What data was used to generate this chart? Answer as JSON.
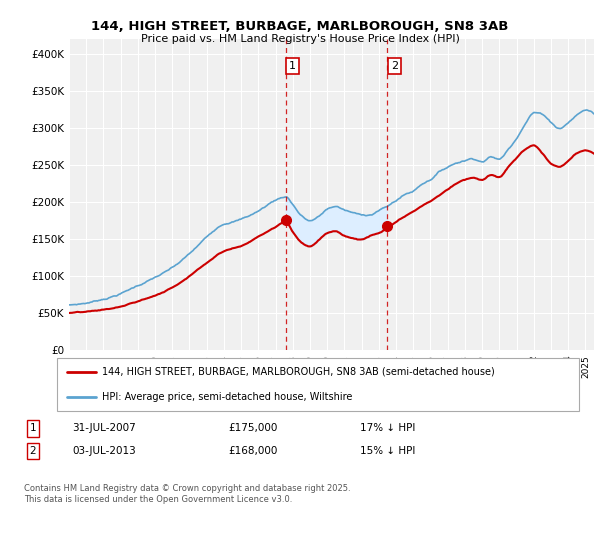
{
  "title": "144, HIGH STREET, BURBAGE, MARLBOROUGH, SN8 3AB",
  "subtitle": "Price paid vs. HM Land Registry's House Price Index (HPI)",
  "legend_line1": "144, HIGH STREET, BURBAGE, MARLBOROUGH, SN8 3AB (semi-detached house)",
  "legend_line2": "HPI: Average price, semi-detached house, Wiltshire",
  "footnote": "Contains HM Land Registry data © Crown copyright and database right 2025.\nThis data is licensed under the Open Government Licence v3.0.",
  "marker1_date": "31-JUL-2007",
  "marker1_price": "£175,000",
  "marker1_hpi": "17% ↓ HPI",
  "marker2_date": "03-JUL-2013",
  "marker2_price": "£168,000",
  "marker2_hpi": "15% ↓ HPI",
  "shade_color": "#ddeeff",
  "hpi_color": "#5ba3d0",
  "price_color": "#cc0000",
  "dashed_line_color": "#cc0000",
  "background_color": "#ffffff",
  "plot_bg_color": "#f0f0f0",
  "ylim": [
    0,
    420000
  ],
  "yticks": [
    0,
    50000,
    100000,
    150000,
    200000,
    250000,
    300000,
    350000,
    400000
  ],
  "vline1_x": 2007.58,
  "vline2_x": 2013.5,
  "marker1_y": 175000,
  "marker2_y": 168000,
  "sale1_x": 2007.58,
  "sale2_x": 2013.5,
  "xlim_left": 1995.0,
  "xlim_right": 2025.5,
  "xtick_years": [
    1995,
    1996,
    1997,
    1998,
    1999,
    2000,
    2001,
    2002,
    2003,
    2004,
    2005,
    2006,
    2007,
    2008,
    2009,
    2010,
    2011,
    2012,
    2013,
    2014,
    2015,
    2016,
    2017,
    2018,
    2019,
    2020,
    2021,
    2022,
    2023,
    2024,
    2025
  ]
}
